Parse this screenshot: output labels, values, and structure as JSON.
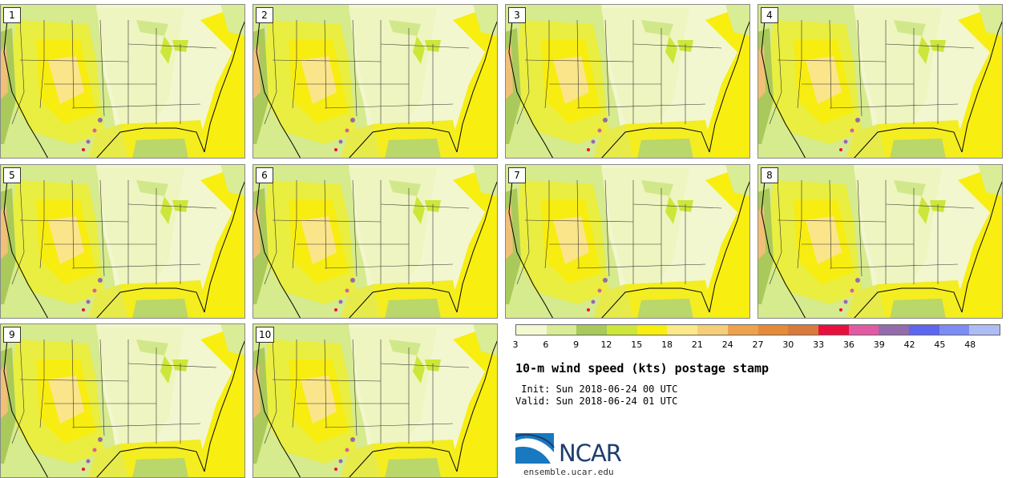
{
  "panels": [
    {
      "label": "1"
    },
    {
      "label": "2"
    },
    {
      "label": "3"
    },
    {
      "label": "4"
    },
    {
      "label": "5"
    },
    {
      "label": "6"
    },
    {
      "label": "7"
    },
    {
      "label": "8"
    },
    {
      "label": "9"
    },
    {
      "label": "10"
    }
  ],
  "colorbar": {
    "colors": [
      "#f4f9d3",
      "#d9ec96",
      "#a9c95a",
      "#cde63a",
      "#f8ee10",
      "#fbe98a",
      "#f6ce7a",
      "#eda24d",
      "#e48a39",
      "#d97a3b",
      "#e8103f",
      "#e25aa3",
      "#946bab",
      "#5e66ef",
      "#7d8cf5",
      "#aebcf5"
    ],
    "tick_labels": [
      "3",
      "6",
      "9",
      "12",
      "15",
      "18",
      "21",
      "24",
      "27",
      "30",
      "33",
      "36",
      "39",
      "42",
      "45",
      "48"
    ]
  },
  "title": "10-m wind speed (kts) postage stamp",
  "init": " Init: Sun 2018-06-24 00 UTC",
  "valid": "Valid: Sun 2018-06-24 01 UTC",
  "logo": {
    "name": "NCAR",
    "url": "ensemble.ucar.edu"
  }
}
